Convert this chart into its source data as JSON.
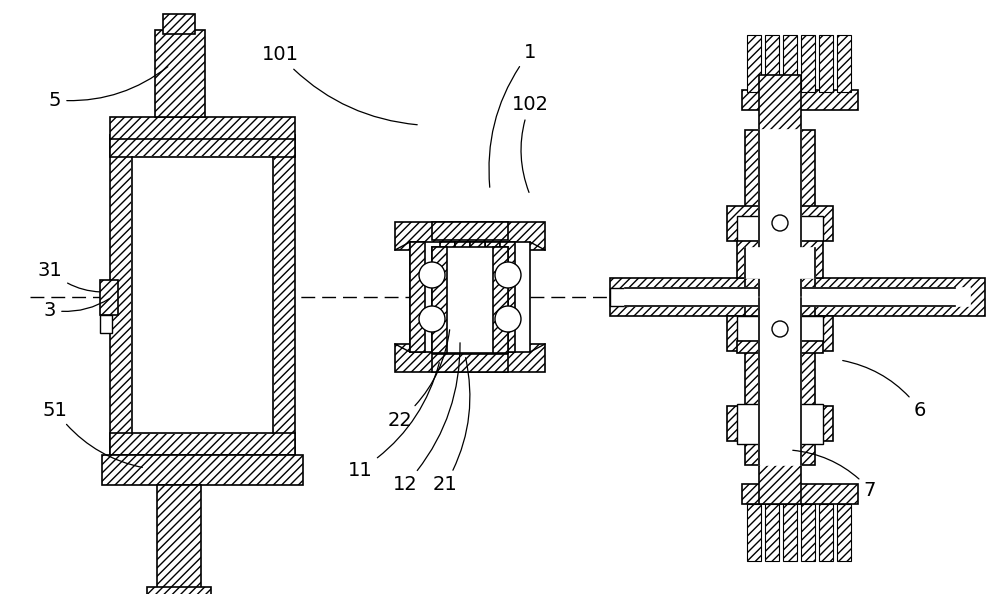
{
  "bg_color": "#ffffff",
  "line_color": "#000000",
  "figsize": [
    10.0,
    5.94
  ],
  "dpi": 100
}
